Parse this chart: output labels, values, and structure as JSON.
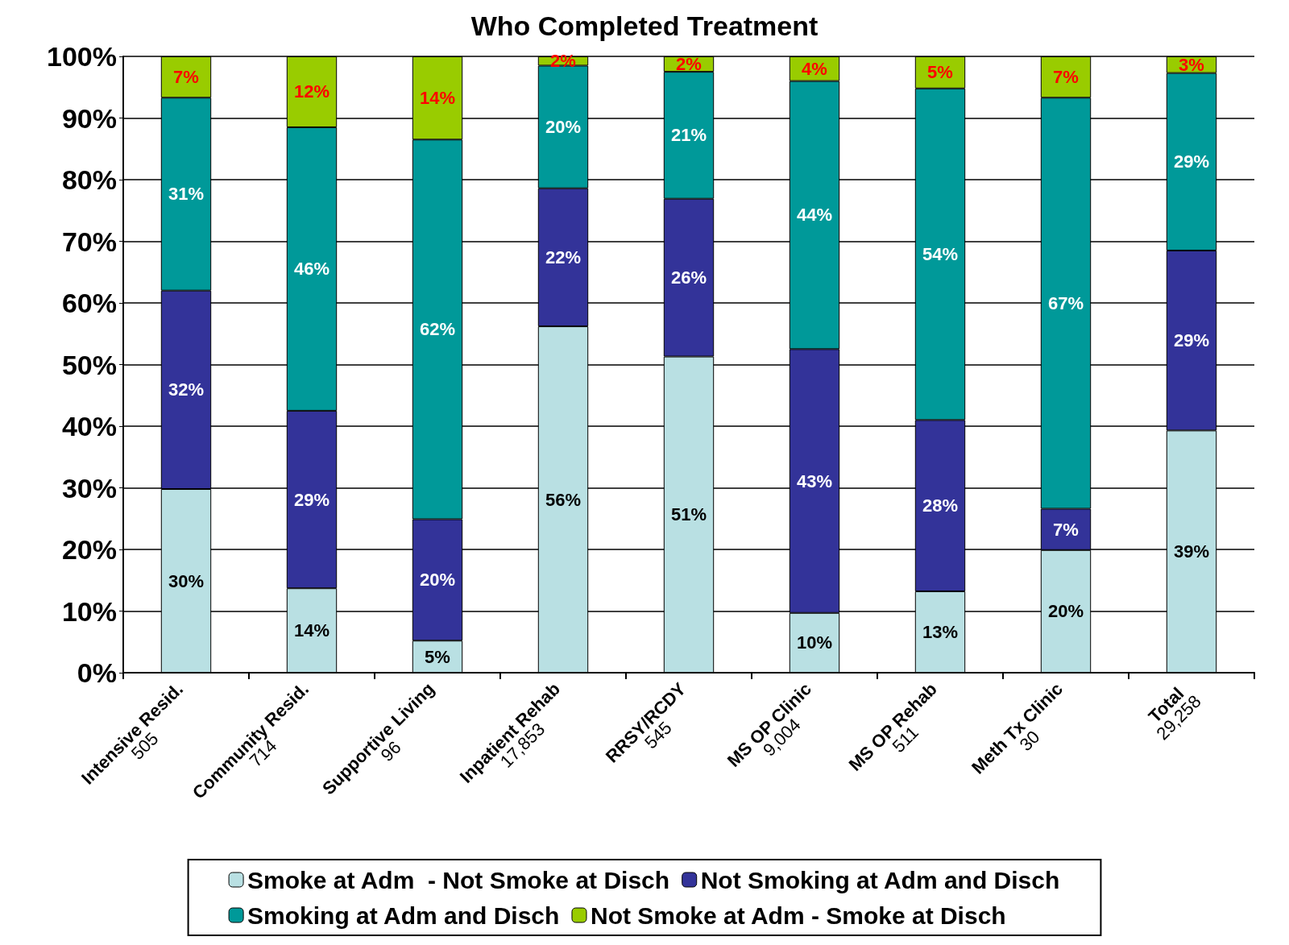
{
  "chart_data": {
    "type": "bar",
    "title": "Who Completed Treatment",
    "stacked": true,
    "categories": [
      "Intensive Resid.\n505",
      "Community Resid.\n714",
      "Supportive Living\n96",
      "Inpatient Rehab\n17,853",
      "RRSY/RCDY\n545",
      "MS OP Clinic\n9,004",
      "MS OP Rehab\n511",
      "Meth Tx Clinic\n30",
      "Total\n29,258"
    ],
    "series": [
      {
        "name": "Smoke at Adm  - Not Smoke at Disch",
        "color": "#b9e0e3",
        "values": [
          29.8,
          13.7,
          5.2,
          56.2,
          51.3,
          9.7,
          13.2,
          19.9,
          39.3
        ],
        "value_labels": [
          "30%",
          "14%",
          "5%",
          "56%",
          "51%",
          "10%",
          "13%",
          "20%",
          "39%"
        ]
      },
      {
        "name": "Not Smoking at Adm and Disch",
        "color": "#333399",
        "values": [
          32.2,
          28.8,
          19.7,
          22.4,
          25.6,
          42.8,
          27.8,
          6.7,
          29.2
        ],
        "value_labels": [
          "32%",
          "29%",
          "20%",
          "22%",
          "26%",
          "43%",
          "28%",
          "7%",
          "29%"
        ]
      },
      {
        "name": "Smoking at Adm and Disch",
        "color": "#009999",
        "values": [
          31.3,
          46,
          61.6,
          19.9,
          20.6,
          43.5,
          53.8,
          66.7,
          28.8
        ],
        "value_labels": [
          "31%",
          "46%",
          "62%",
          "20%",
          "21%",
          "44%",
          "54%",
          "67%",
          "29%"
        ]
      },
      {
        "name": "Not Smoke at Adm - Smoke at Disch",
        "color": "#99cc00",
        "values": [
          6.7,
          11.5,
          13.5,
          1.5,
          2.5,
          4,
          5.2,
          6.7,
          2.7
        ],
        "value_labels": [
          "7%",
          "12%",
          "14%",
          "2%",
          "2%",
          "4%",
          "5%",
          "7%",
          "3%"
        ]
      }
    ],
    "ylim": [
      0,
      100
    ],
    "yticks": [
      {
        "value": 0,
        "label": "0%"
      },
      {
        "value": 10,
        "label": "10%"
      },
      {
        "value": 20,
        "label": "20%"
      },
      {
        "value": 30,
        "label": "30%"
      },
      {
        "value": 40,
        "label": "40%"
      },
      {
        "value": 50,
        "label": "50%"
      },
      {
        "value": 60,
        "label": "60%"
      },
      {
        "value": 70,
        "label": "70%"
      },
      {
        "value": 80,
        "label": "80%"
      },
      {
        "value": 90,
        "label": "90%"
      },
      {
        "value": 100,
        "label": "100%"
      }
    ],
    "grid": "y",
    "legend": "bottom"
  }
}
